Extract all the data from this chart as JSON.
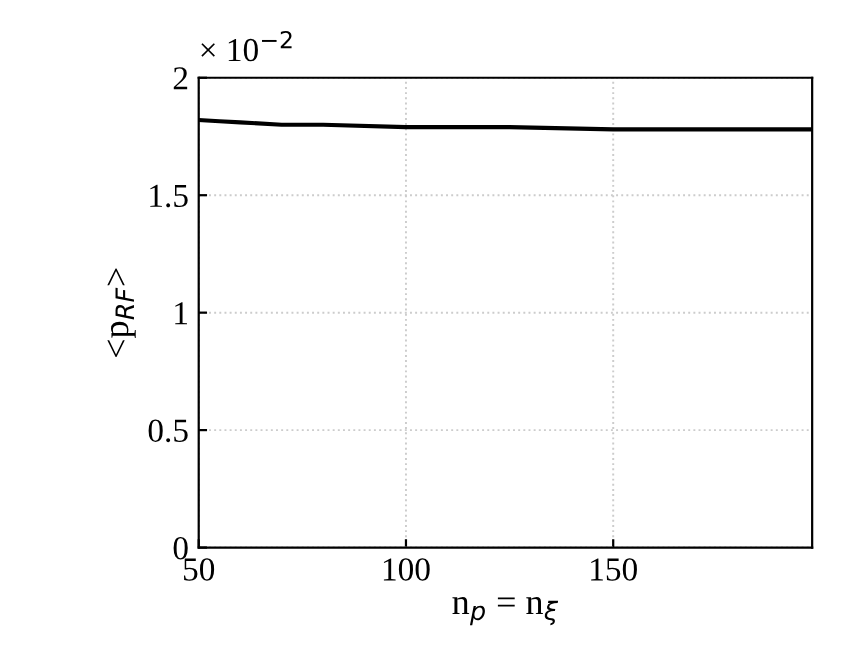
{
  "chart_data": {
    "type": "line",
    "xlabel": "n$_{p}$ = n$_{ξ}$",
    "ylabel": "<p$_{RF}$>",
    "annotations": [
      "× 10$^{−2}$"
    ],
    "x": [
      50,
      55,
      60,
      70,
      80,
      100,
      125,
      150,
      175,
      198
    ],
    "series": [
      {
        "color": "#000000",
        "values": [
          1.82,
          1.815,
          1.81,
          1.8,
          1.8,
          1.79,
          1.79,
          1.78,
          1.78,
          1.78
        ]
      }
    ],
    "xlim": [
      50,
      198
    ],
    "xticks": [
      50,
      100,
      150
    ],
    "ylim": [
      0,
      2
    ],
    "yticks": [
      0,
      0.5,
      1,
      1.5,
      2
    ],
    "grid": true,
    "line_style": "solid",
    "marker": "none"
  }
}
